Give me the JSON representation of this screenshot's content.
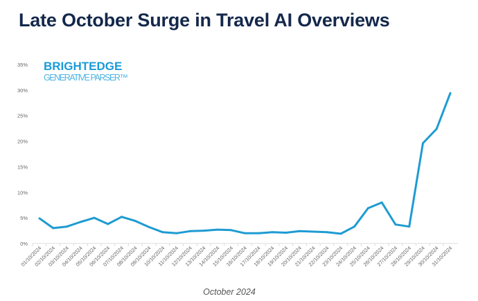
{
  "title": "Late October Surge in Travel AI Overviews",
  "logo": {
    "brand": "BRIGHTEDGE",
    "product": "GENERATIVE PARSER™"
  },
  "colors": {
    "line": "#1e9bd2",
    "title": "#14284b",
    "logo": "#1a9bd7"
  },
  "chart_data": {
    "type": "line",
    "title": "Late October Surge in Travel AI Overviews",
    "xlabel": "October 2024",
    "ylabel": "",
    "ylim": [
      0,
      35
    ],
    "yticks": [
      "0%",
      "5%",
      "10%",
      "15%",
      "20%",
      "25%",
      "30%",
      "35%"
    ],
    "grid": false,
    "categories": [
      "01/10/2024",
      "02/10/2024",
      "03/10/2024",
      "04/10/2024",
      "05/10/2024",
      "06/10/2024",
      "07/10/2024",
      "08/10/2024",
      "09/10/2024",
      "10/10/2024",
      "11/10/2024",
      "12/10/2024",
      "13/10/2024",
      "14/10/2024",
      "15/10/2024",
      "16/10/2024",
      "17/10/2024",
      "18/10/2024",
      "19/10/2024",
      "20/10/2024",
      "21/10/2024",
      "22/10/2024",
      "23/10/2024",
      "24/10/2024",
      "25/10/2024",
      "26/10/2024",
      "27/10/2024",
      "28/10/2024",
      "29/10/2024",
      "30/10/2024",
      "31/10/2024"
    ],
    "values": [
      4.9,
      3.0,
      3.3,
      4.2,
      5.0,
      3.8,
      5.2,
      4.4,
      3.2,
      2.2,
      2.0,
      2.4,
      2.5,
      2.7,
      2.6,
      2.0,
      2.0,
      2.2,
      2.1,
      2.4,
      2.3,
      2.2,
      1.9,
      3.3,
      6.9,
      8.0,
      3.7,
      3.3,
      19.6,
      22.4,
      29.4
    ]
  }
}
